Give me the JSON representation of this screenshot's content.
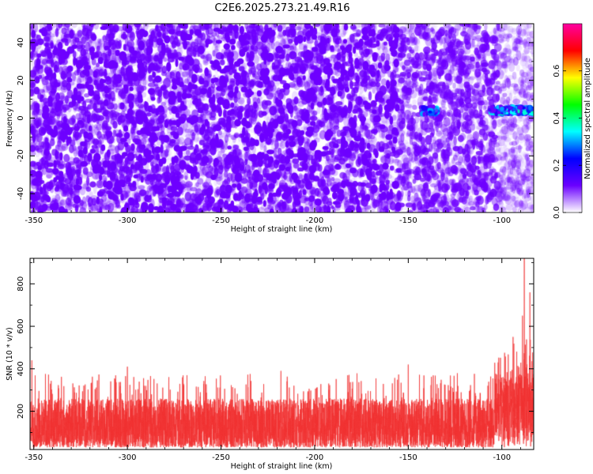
{
  "figure": {
    "title": "C2E6.2025.273.21.49.R16"
  },
  "chart_data": [
    {
      "type": "heatmap",
      "name": "spectrogram",
      "xlabel": "Height of straight line (km)",
      "ylabel": "Frequency (Hz)",
      "xlim": [
        -352,
        -83
      ],
      "ylim": [
        -50,
        50
      ],
      "x_ticks": [
        -350,
        -300,
        -250,
        -200,
        -150,
        -100
      ],
      "y_ticks": [
        -40,
        -20,
        0,
        20,
        40
      ],
      "grid": false,
      "colorbar": {
        "label": "Normalized spectral amplitude",
        "range": [
          0,
          0.8
        ],
        "ticks": [
          0.0,
          0.2,
          0.4,
          0.6
        ],
        "colormap": [
          "#ffffff",
          "#6a00ff",
          "#0000ff",
          "#00ffff",
          "#00ff00",
          "#ffff00",
          "#ff0000",
          "#ff00a0"
        ]
      },
      "features": {
        "background": "random speckle, amplitude 0.0-0.15",
        "signal_band_frequency_hz": [
          2,
          6
        ],
        "signal_segments_km": [
          [
            -143,
            -134
          ],
          [
            -106,
            -83
          ]
        ],
        "signal_amplitude": 0.3
      }
    },
    {
      "type": "line",
      "name": "snr",
      "xlabel": "Height of straight line (km)",
      "ylabel": "SNR (10 * v/v)",
      "xlim": [
        -352,
        -83
      ],
      "ylim": [
        20,
        920
      ],
      "x_ticks": [
        -350,
        -300,
        -250,
        -200,
        -150,
        -100
      ],
      "y_ticks": [
        200,
        400,
        600,
        800
      ],
      "grid": false,
      "color": "#f03030",
      "noise_floor_range": [
        30,
        260
      ],
      "typical_peaks": [
        300,
        380
      ],
      "notable_peaks": [
        {
          "x": -351,
          "y": 440
        },
        {
          "x": -300,
          "y": 410
        },
        {
          "x": -218,
          "y": 390
        },
        {
          "x": -150,
          "y": 420
        },
        {
          "x": -102,
          "y": 430
        },
        {
          "x": -94,
          "y": 550
        },
        {
          "x": -89,
          "y": 650
        },
        {
          "x": -88,
          "y": 920
        },
        {
          "x": -85,
          "y": 760
        }
      ]
    }
  ]
}
